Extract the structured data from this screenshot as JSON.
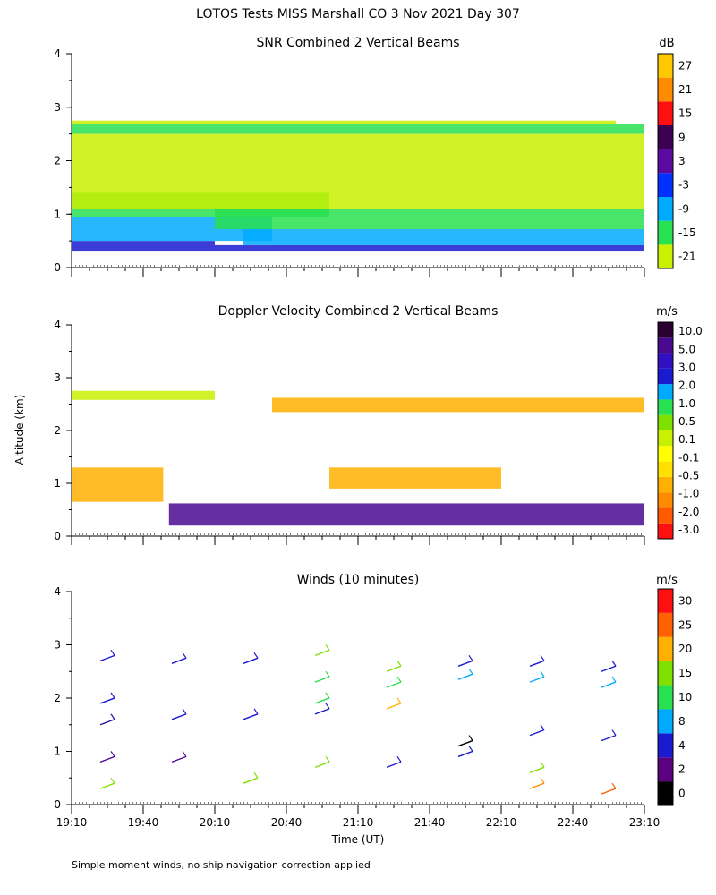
{
  "main_title": "LOTOS Tests MISS Marshall CO   3 Nov 2021 Day 307",
  "shared_ylabel": "Altitude (km)",
  "shared_xlabel": "Time (UT)",
  "footnote": "Simple moment winds, no ship navigation correction applied",
  "chart_data": [
    {
      "type": "heatmap",
      "title": "SNR Combined 2 Vertical Beams",
      "unit": "dB",
      "ylim": [
        0,
        4
      ],
      "yticks": [
        0,
        1,
        2,
        3,
        4
      ],
      "xticks": [
        "19:10",
        "19:40",
        "20:10",
        "20:40",
        "21:10",
        "21:40",
        "22:10",
        "22:40",
        "23:10"
      ],
      "colorbar": {
        "colors": [
          "#c8f000",
          "#28e050",
          "#00aaff",
          "#0030ff",
          "#5a0aa0",
          "#3c0050",
          "#ff1010",
          "#ff8c00",
          "#ffc800"
        ],
        "labels": [
          "-21",
          "-15",
          "-9",
          "-3",
          "3",
          "9",
          "15",
          "21",
          "27"
        ]
      },
      "layers": [
        {
          "name": "strong",
          "color": "#1a1ad0",
          "rows": [
            [
              0.3,
              0.5,
              0.0,
              0.25
            ],
            [
              0.3,
              0.42,
              0.25,
              1.0
            ]
          ]
        },
        {
          "name": "mid",
          "color": "#00aaff",
          "rows": [
            [
              0.5,
              0.95,
              0.0,
              0.35
            ],
            [
              0.42,
              0.72,
              0.3,
              1.0
            ]
          ]
        },
        {
          "name": "low",
          "color": "#28e050",
          "rows": [
            [
              0.95,
              1.4,
              0.0,
              0.45
            ],
            [
              0.72,
              1.1,
              0.25,
              1.0
            ],
            [
              2.5,
              2.68,
              0.0,
              1.0
            ]
          ]
        },
        {
          "name": "weak",
          "color": "#c8f000",
          "rows": [
            [
              1.1,
              2.5,
              0.0,
              1.0
            ],
            [
              2.68,
              2.75,
              0.0,
              0.95
            ]
          ]
        }
      ]
    },
    {
      "type": "heatmap",
      "title": "Doppler Velocity Combined 2 Vertical Beams",
      "unit": "m/s",
      "ylim": [
        0,
        4
      ],
      "yticks": [
        0,
        1,
        2,
        3,
        4
      ],
      "xticks": [
        "19:10",
        "19:40",
        "20:10",
        "20:40",
        "21:10",
        "21:40",
        "22:10",
        "22:40",
        "23:10"
      ],
      "colorbar": {
        "colors": [
          "#ff1010",
          "#ff5a00",
          "#ff8c00",
          "#ffb000",
          "#ffe000",
          "#ffff00",
          "#c8f000",
          "#80e000",
          "#28e050",
          "#00aaff",
          "#1a1ad0",
          "#3010c0",
          "#4a0a90",
          "#2a0030"
        ],
        "labels": [
          "-3.0",
          "-2.0",
          "-1.0",
          "-0.5",
          "-0.1",
          "0.1",
          "0.5",
          "1.0",
          "2.0",
          "3.0",
          "5.0",
          "10.0"
        ]
      },
      "layers": [
        {
          "name": "near-surface",
          "color": "#4a0a90",
          "rows": [
            [
              0.2,
              0.62,
              0.17,
              1.0
            ]
          ]
        },
        {
          "name": "lower",
          "color": "#ffb000",
          "rows": [
            [
              0.65,
              1.3,
              0.0,
              0.16
            ],
            [
              0.9,
              1.3,
              0.45,
              0.75
            ]
          ]
        },
        {
          "name": "top",
          "color": "#ffb000",
          "rows": [
            [
              2.35,
              2.62,
              0.35,
              1.0
            ]
          ]
        },
        {
          "name": "top-edge",
          "color": "#c8f000",
          "rows": [
            [
              2.58,
              2.75,
              0.0,
              0.25
            ]
          ]
        }
      ]
    },
    {
      "type": "scatter",
      "title": "Winds (10 minutes)",
      "unit": "m/s",
      "ylim": [
        0,
        4
      ],
      "yticks": [
        0,
        1,
        2,
        3,
        4
      ],
      "xticks": [
        "19:10",
        "19:40",
        "20:10",
        "20:40",
        "21:10",
        "21:40",
        "22:10",
        "22:40",
        "23:10"
      ],
      "colorbar": {
        "colors": [
          "#000000",
          "#5a0080",
          "#1a1ad0",
          "#00aaff",
          "#28e050",
          "#80e000",
          "#ffb000",
          "#ff6000",
          "#ff1010"
        ],
        "labels": [
          "0",
          "2",
          "4",
          "8",
          "10",
          "15",
          "20",
          "25",
          "30"
        ]
      },
      "wind_columns": [
        {
          "time": "19:25",
          "barbs": [
            [
              2.7,
              "#1a1ad0"
            ],
            [
              1.9,
              "#1a1ad0"
            ],
            [
              1.5,
              "#3010a0"
            ],
            [
              0.8,
              "#4a0a90"
            ],
            [
              0.3,
              "#80e000"
            ]
          ]
        },
        {
          "time": "19:55",
          "barbs": [
            [
              2.65,
              "#1a1ad0"
            ],
            [
              1.6,
              "#1a1ad0"
            ],
            [
              0.8,
              "#4a0a90"
            ]
          ]
        },
        {
          "time": "20:25",
          "barbs": [
            [
              2.65,
              "#1a1ad0"
            ],
            [
              1.6,
              "#1a1ad0"
            ],
            [
              0.4,
              "#80e000"
            ]
          ]
        },
        {
          "time": "20:55",
          "barbs": [
            [
              2.8,
              "#80e000"
            ],
            [
              2.3,
              "#28e050"
            ],
            [
              1.9,
              "#28e050"
            ],
            [
              1.7,
              "#1a1ad0"
            ],
            [
              0.7,
              "#80e000"
            ]
          ]
        },
        {
          "time": "21:25",
          "barbs": [
            [
              2.5,
              "#80e000"
            ],
            [
              2.2,
              "#28e050"
            ],
            [
              1.8,
              "#ffb000"
            ],
            [
              0.7,
              "#1a1ad0"
            ]
          ]
        },
        {
          "time": "21:55",
          "barbs": [
            [
              2.6,
              "#1a1ad0"
            ],
            [
              2.35,
              "#00aaff"
            ],
            [
              1.1,
              "#000000"
            ],
            [
              0.9,
              "#1a1ad0"
            ]
          ]
        },
        {
          "time": "22:25",
          "barbs": [
            [
              2.6,
              "#1a1ad0"
            ],
            [
              2.3,
              "#00aaff"
            ],
            [
              1.3,
              "#1a1ad0"
            ],
            [
              0.6,
              "#80e000"
            ],
            [
              0.3,
              "#ff8c00"
            ]
          ]
        },
        {
          "time": "22:55",
          "barbs": [
            [
              2.5,
              "#1a1ad0"
            ],
            [
              2.2,
              "#00aaff"
            ],
            [
              1.2,
              "#1a1ad0"
            ],
            [
              0.2,
              "#ff5a00"
            ]
          ]
        }
      ]
    }
  ]
}
